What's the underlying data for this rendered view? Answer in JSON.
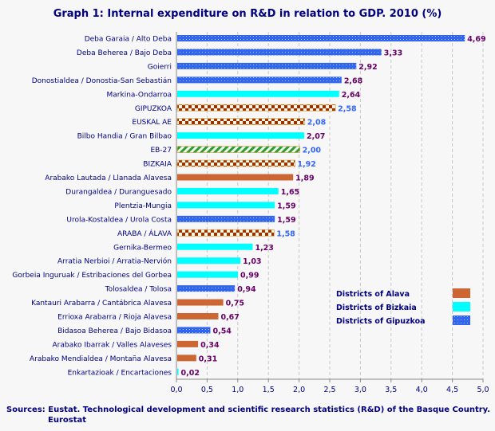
{
  "chart_data": {
    "type": "bar",
    "orientation": "horizontal",
    "title": "Graph 1: Internal expenditure on R&D in relation to GDP. 2010 (%)",
    "xlim": [
      0,
      5.0
    ],
    "xticks": [
      "0,0",
      "0,5",
      "1,0",
      "1,5",
      "2,0",
      "2,5",
      "3,0",
      "3,5",
      "4,0",
      "4,5",
      "5,0"
    ],
    "grid": "vertical dashed",
    "legend_placement": "bottom-right",
    "categories": [
      "Deba Garaia / Alto Deba",
      "Deba Beherea / Bajo Deba",
      "Goierri",
      "Donostialdea / Donostia-San Sebastián",
      "Markina-Ondarroa",
      "GIPUZKOA",
      "EUSKAL AE",
      "Bilbo Handia / Gran Bilbao",
      "EB-27",
      "BIZKAIA",
      "Arabako Lautada / Llanada Alavesa",
      "Durangaldea / Duranguesado",
      "Plentzia-Mungia",
      "Urola-Kostaldea / Urola Costa",
      "ARABA / ÁLAVA",
      "Gernika-Bermeo",
      "Arratia Nerbioi / Arratia-Nervión",
      "Gorbeia Inguruak / Estribaciones del Gorbea",
      "Tolosaldea / Tolosa",
      "Kantauri Arabarra / Cantábrica Alavesa",
      "Errioxa Arabarra / Rioja Alavesa",
      "Bidasoa Beherea / Bajo Bidasoa",
      "Arabako Ibarrak / Valles Alaveses",
      "Arabako Mendialdea / Montaña Alavesa",
      "Enkartazioak / Encartaciones"
    ],
    "values": [
      4.69,
      3.33,
      2.92,
      2.68,
      2.64,
      2.58,
      2.08,
      2.07,
      2.0,
      1.92,
      1.89,
      1.65,
      1.59,
      1.59,
      1.58,
      1.23,
      1.03,
      0.99,
      0.94,
      0.75,
      0.67,
      0.54,
      0.34,
      0.31,
      0.02
    ],
    "labels": [
      "4,69",
      "3,33",
      "2,92",
      "2,68",
      "2,64",
      "2,58",
      "2,08",
      "2,07",
      "2,00",
      "1,92",
      "1,89",
      "1,65",
      "1,59",
      "1,59",
      "1,58",
      "1,23",
      "1,03",
      "0,99",
      "0,94",
      "0,75",
      "0,67",
      "0,54",
      "0,34",
      "0,31",
      "0,02"
    ],
    "groups": [
      "gipuzkoa",
      "gipuzkoa",
      "gipuzkoa",
      "gipuzkoa",
      "bizkaia",
      "aggregate",
      "aggregate",
      "bizkaia",
      "eu",
      "aggregate",
      "alava",
      "bizkaia",
      "bizkaia",
      "gipuzkoa",
      "aggregate",
      "bizkaia",
      "bizkaia",
      "bizkaia",
      "gipuzkoa",
      "alava",
      "alava",
      "gipuzkoa",
      "alava",
      "alava",
      "bizkaia"
    ],
    "legend": [
      {
        "label": "Districts of Alava",
        "group": "alava"
      },
      {
        "label": "Districts of Bizkaia",
        "group": "bizkaia"
      },
      {
        "label": "Districts of Gipuzkoa",
        "group": "gipuzkoa"
      }
    ],
    "colors": {
      "alava": "#cc6633",
      "bizkaia": "#00ffff",
      "gipuzkoa": "#3366ee",
      "aggregate": "#993300",
      "eu": "#339933",
      "district_label": "#660066",
      "aggregate_label": "#3366ff",
      "text": "#000080"
    }
  },
  "sources": {
    "line1": "Sources: Eustat. Technological development and scientific research statistics (R&D) of the Basque Country.",
    "line2": "Eurostat"
  }
}
